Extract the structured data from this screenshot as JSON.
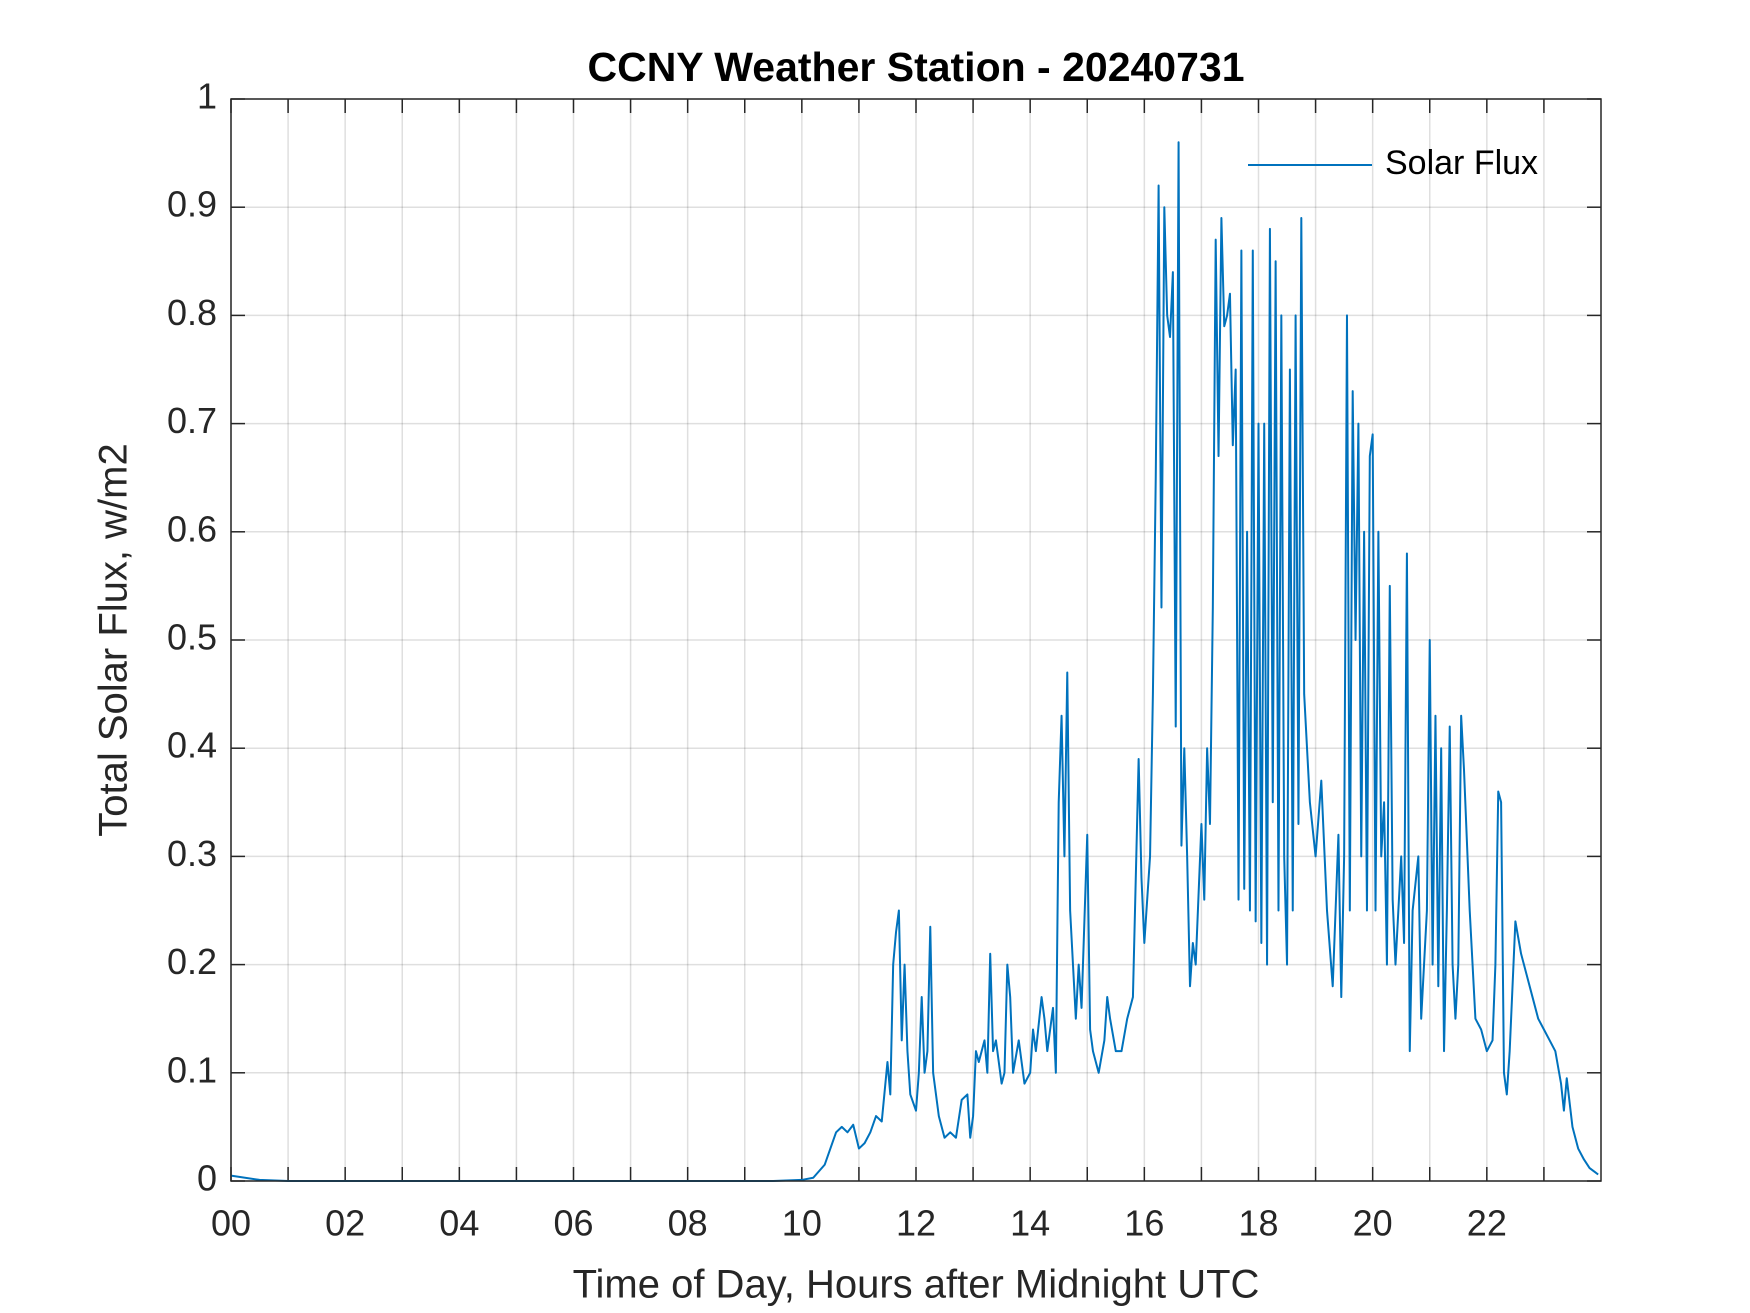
{
  "chart_data": {
    "type": "line",
    "title": "CCNY Weather Station - 20240731",
    "xlabel": "Time of Day, Hours after Midnight UTC",
    "ylabel": "Total Solar Flux, w/m2",
    "xlim": [
      0,
      24
    ],
    "ylim": [
      0,
      1
    ],
    "xticks": [
      {
        "value": 0,
        "label": "00"
      },
      {
        "value": 2,
        "label": "02"
      },
      {
        "value": 4,
        "label": "04"
      },
      {
        "value": 6,
        "label": "06"
      },
      {
        "value": 8,
        "label": "08"
      },
      10,
      12,
      14,
      16,
      18,
      20,
      22
    ],
    "xminorticks": [
      1,
      3,
      5,
      7,
      9,
      11,
      13,
      15,
      17,
      19,
      21,
      23
    ],
    "yticks": [
      0,
      0.1,
      0.2,
      0.3,
      0.4,
      0.5,
      0.6,
      0.7,
      0.8,
      0.9,
      1
    ],
    "grid": true,
    "legend": "upper right",
    "x": [
      0,
      0.5,
      1,
      9.5,
      10,
      10.2,
      10.4,
      10.6,
      10.7,
      10.8,
      10.9,
      11.0,
      11.1,
      11.2,
      11.3,
      11.4,
      11.5,
      11.55,
      11.6,
      11.65,
      11.7,
      11.75,
      11.8,
      11.85,
      11.9,
      12.0,
      12.05,
      12.1,
      12.15,
      12.2,
      12.25,
      12.3,
      12.4,
      12.5,
      12.6,
      12.7,
      12.8,
      12.9,
      12.95,
      13.0,
      13.05,
      13.1,
      13.2,
      13.25,
      13.3,
      13.35,
      13.4,
      13.5,
      13.55,
      13.6,
      13.65,
      13.7,
      13.8,
      13.9,
      14.0,
      14.05,
      14.1,
      14.2,
      14.25,
      14.3,
      14.4,
      14.45,
      14.5,
      14.55,
      14.6,
      14.65,
      14.7,
      14.8,
      14.85,
      14.9,
      15.0,
      15.05,
      15.1,
      15.2,
      15.3,
      15.35,
      15.4,
      15.5,
      15.6,
      15.7,
      15.8,
      15.9,
      15.95,
      16.0,
      16.1,
      16.15,
      16.2,
      16.25,
      16.3,
      16.35,
      16.4,
      16.45,
      16.5,
      16.55,
      16.6,
      16.65,
      16.7,
      16.75,
      16.8,
      16.85,
      16.9,
      17.0,
      17.05,
      17.1,
      17.15,
      17.2,
      17.25,
      17.3,
      17.35,
      17.4,
      17.45,
      17.5,
      17.55,
      17.6,
      17.65,
      17.7,
      17.75,
      17.8,
      17.85,
      17.9,
      17.95,
      18.0,
      18.05,
      18.1,
      18.15,
      18.2,
      18.25,
      18.3,
      18.35,
      18.4,
      18.45,
      18.5,
      18.55,
      18.6,
      18.65,
      18.7,
      18.75,
      18.8,
      18.9,
      19.0,
      19.1,
      19.2,
      19.3,
      19.4,
      19.45,
      19.5,
      19.55,
      19.6,
      19.65,
      19.7,
      19.75,
      19.8,
      19.85,
      19.9,
      19.95,
      20.0,
      20.05,
      20.1,
      20.15,
      20.2,
      20.25,
      20.3,
      20.35,
      20.4,
      20.5,
      20.55,
      20.6,
      20.65,
      20.7,
      20.8,
      20.85,
      20.9,
      20.95,
      21.0,
      21.05,
      21.1,
      21.15,
      21.2,
      21.25,
      21.3,
      21.35,
      21.4,
      21.45,
      21.5,
      21.55,
      21.6,
      21.7,
      21.8,
      21.9,
      22.0,
      22.1,
      22.15,
      22.2,
      22.25,
      22.3,
      22.35,
      22.4,
      22.5,
      22.6,
      22.7,
      22.8,
      22.9,
      23.0,
      23.1,
      23.2,
      23.3,
      23.35,
      23.4,
      23.5,
      23.6,
      23.7,
      23.8,
      23.9,
      23.95
    ],
    "series": [
      {
        "name": "Solar Flux",
        "color": "#0072bd",
        "values": [
          0.005,
          0.001,
          0,
          0,
          0.001,
          0.003,
          0.015,
          0.045,
          0.05,
          0.045,
          0.052,
          0.03,
          0.035,
          0.045,
          0.06,
          0.055,
          0.11,
          0.08,
          0.2,
          0.23,
          0.25,
          0.13,
          0.2,
          0.12,
          0.08,
          0.065,
          0.1,
          0.17,
          0.1,
          0.12,
          0.235,
          0.1,
          0.06,
          0.04,
          0.045,
          0.04,
          0.075,
          0.08,
          0.04,
          0.06,
          0.12,
          0.11,
          0.13,
          0.1,
          0.21,
          0.12,
          0.13,
          0.09,
          0.1,
          0.2,
          0.17,
          0.1,
          0.13,
          0.09,
          0.1,
          0.14,
          0.12,
          0.17,
          0.15,
          0.12,
          0.16,
          0.1,
          0.35,
          0.43,
          0.3,
          0.47,
          0.25,
          0.15,
          0.2,
          0.16,
          0.32,
          0.14,
          0.12,
          0.1,
          0.13,
          0.17,
          0.15,
          0.12,
          0.12,
          0.15,
          0.17,
          0.39,
          0.28,
          0.22,
          0.3,
          0.45,
          0.65,
          0.92,
          0.53,
          0.9,
          0.8,
          0.78,
          0.84,
          0.42,
          0.96,
          0.31,
          0.4,
          0.3,
          0.18,
          0.22,
          0.2,
          0.33,
          0.26,
          0.4,
          0.33,
          0.53,
          0.87,
          0.67,
          0.89,
          0.79,
          0.8,
          0.82,
          0.68,
          0.75,
          0.26,
          0.86,
          0.27,
          0.6,
          0.25,
          0.86,
          0.24,
          0.7,
          0.22,
          0.7,
          0.2,
          0.88,
          0.35,
          0.85,
          0.25,
          0.8,
          0.3,
          0.2,
          0.75,
          0.25,
          0.8,
          0.33,
          0.89,
          0.45,
          0.35,
          0.3,
          0.37,
          0.25,
          0.18,
          0.32,
          0.17,
          0.3,
          0.8,
          0.25,
          0.73,
          0.5,
          0.7,
          0.3,
          0.6,
          0.25,
          0.67,
          0.69,
          0.25,
          0.6,
          0.3,
          0.35,
          0.2,
          0.55,
          0.26,
          0.2,
          0.3,
          0.22,
          0.58,
          0.12,
          0.25,
          0.3,
          0.15,
          0.2,
          0.25,
          0.5,
          0.2,
          0.43,
          0.18,
          0.4,
          0.12,
          0.25,
          0.42,
          0.2,
          0.15,
          0.2,
          0.43,
          0.38,
          0.25,
          0.15,
          0.14,
          0.12,
          0.13,
          0.2,
          0.36,
          0.35,
          0.1,
          0.08,
          0.12,
          0.24,
          0.21,
          0.19,
          0.17,
          0.15,
          0.14,
          0.13,
          0.12,
          0.09,
          0.065,
          0.095,
          0.05,
          0.03,
          0.02,
          0.012,
          0.008,
          0.006
        ]
      }
    ]
  }
}
